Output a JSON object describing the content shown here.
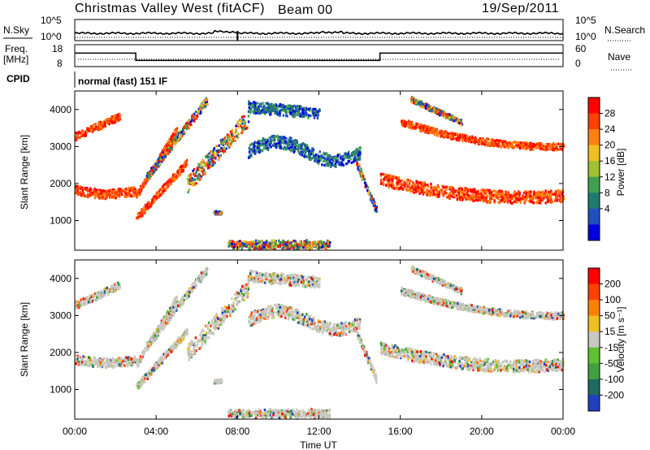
{
  "header": {
    "title": "Christmas Valley West (fitACF)",
    "beam": "Beam 00",
    "date": "19/Sep/2011",
    "cpid_label": "CPID",
    "cpid_value": "normal (fast) 151 IF"
  },
  "chart_data": [
    {
      "type": "line",
      "panel": "noise",
      "left_label": "N.Sky",
      "right_label": "N.Search",
      "yticks_left": [
        "10^5",
        "10^0"
      ],
      "yticks_right": [
        "10^5",
        "10^0"
      ]
    },
    {
      "type": "line",
      "panel": "frequency",
      "left_label_top": "Freq.",
      "left_label_bottom": "[MHz]",
      "right_label": "Nave",
      "yticks_left": [
        "18",
        "8"
      ],
      "yticks_right": [
        "60",
        "0"
      ],
      "freq_series": {
        "x": [
          0,
          3.0,
          3.0,
          15.0,
          15.0,
          24
        ],
        "y": [
          15,
          15,
          10,
          10,
          15,
          15
        ]
      }
    },
    {
      "type": "heatmap",
      "panel": "power",
      "ylabel": "Slant Range [km]",
      "xlim": [
        0,
        24
      ],
      "ylim": [
        200,
        4500
      ],
      "yticks": [
        1000,
        2000,
        3000,
        4000
      ],
      "colorbar_label": "Power [dB]",
      "colorbar_ticks": [
        "28",
        "24",
        "20",
        "16",
        "12",
        "8",
        "4"
      ],
      "colors": [
        "#0000e0",
        "#2050c0",
        "#207a70",
        "#40a050",
        "#a0c030",
        "#f0c020",
        "#ff8010",
        "#ff4000",
        "#ff0000"
      ]
    },
    {
      "type": "heatmap",
      "panel": "velocity",
      "ylabel": "Slant Range [km]",
      "xlabel": "Time UT",
      "xlim": [
        0,
        24
      ],
      "ylim": [
        200,
        4500
      ],
      "yticks": [
        1000,
        2000,
        3000,
        4000
      ],
      "xticks": [
        "00:00",
        "04:00",
        "08:00",
        "12:00",
        "16:00",
        "20:00",
        "00:00"
      ],
      "colorbar_label": "Velocity [m s⁻¹]",
      "colorbar_ticks": [
        "200",
        "100",
        "50",
        "15",
        "-15",
        "-50",
        "-100",
        "-200"
      ],
      "colors": [
        "#2040c0",
        "#206a60",
        "#40a040",
        "#60c030",
        "#c8c8c0",
        "#f0c020",
        "#ff8000",
        "#ff4000",
        "#ff0000"
      ]
    }
  ]
}
